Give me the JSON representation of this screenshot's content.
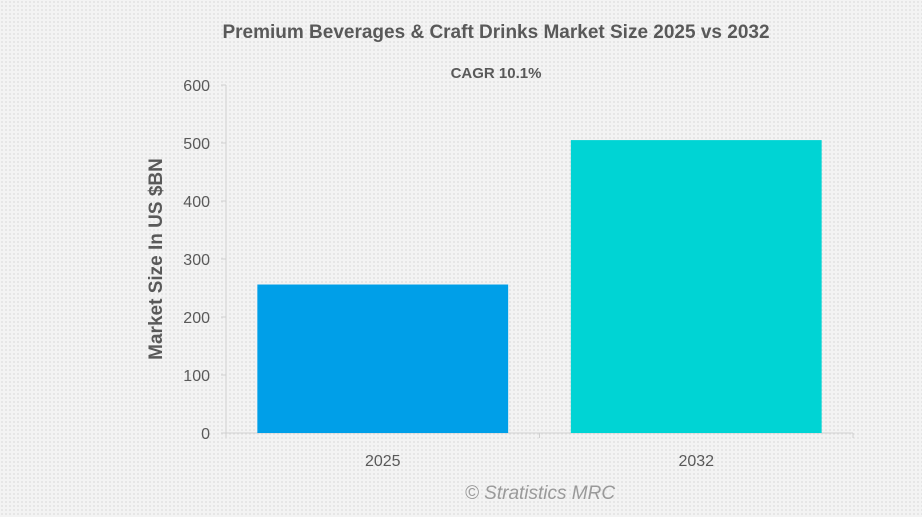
{
  "chart_data": {
    "type": "bar",
    "title": "Premium Beverages & Craft Drinks Market Size 2025 vs 2032",
    "subtitle": "CAGR 10.1%",
    "categories": [
      "2025",
      "2032"
    ],
    "values": [
      256,
      505
    ],
    "xlabel": "",
    "ylabel": "Market Size In US $BN",
    "ylim": [
      0,
      600
    ],
    "yticks": [
      0,
      100,
      200,
      300,
      400,
      500,
      600
    ],
    "grid": false,
    "legend": "none",
    "colors": [
      "#009fe8",
      "#00d4d4"
    ]
  },
  "watermark": "© Stratistics MRC",
  "colors": {
    "text": "#595959",
    "axis": "#d0d0d0",
    "watermark": "#9a9a9a"
  }
}
